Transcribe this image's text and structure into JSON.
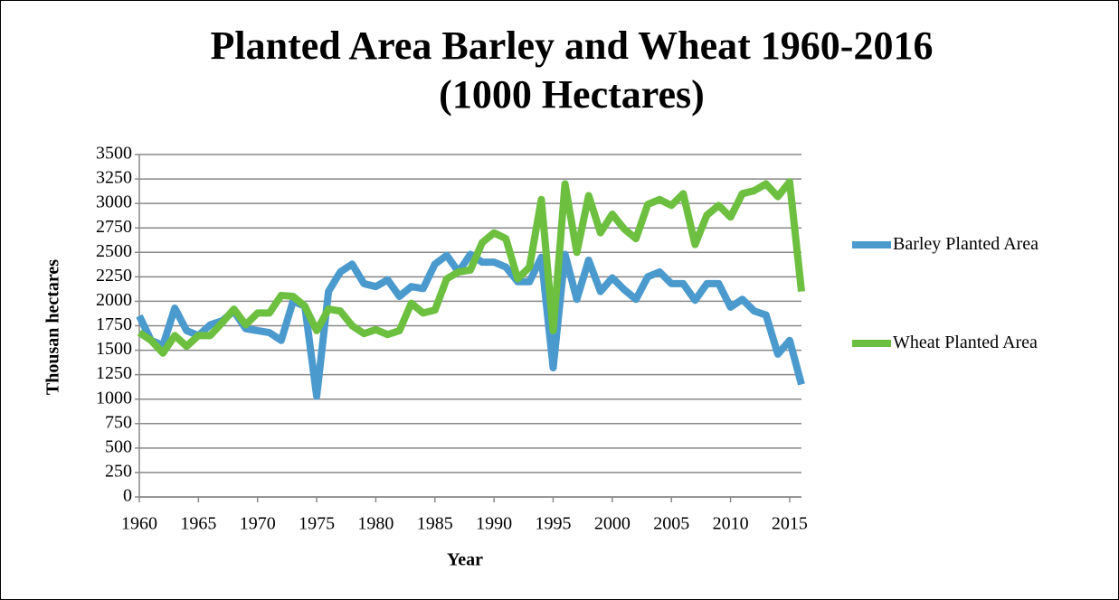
{
  "chart_data": {
    "type": "line",
    "title": [
      "Planted Area Barley and Wheat  1960-2016",
      "(1000 Hectares)"
    ],
    "xlabel": "Year",
    "ylabel": "Thousan hectares",
    "x": [
      1960,
      1961,
      1962,
      1963,
      1964,
      1965,
      1966,
      1967,
      1968,
      1969,
      1970,
      1971,
      1972,
      1973,
      1974,
      1975,
      1976,
      1977,
      1978,
      1979,
      1980,
      1981,
      1982,
      1983,
      1984,
      1985,
      1986,
      1987,
      1988,
      1989,
      1990,
      1991,
      1992,
      1993,
      1994,
      1995,
      1996,
      1997,
      1998,
      1999,
      2000,
      2001,
      2002,
      2003,
      2004,
      2005,
      2006,
      2007,
      2008,
      2009,
      2010,
      2011,
      2012,
      2013,
      2014,
      2015,
      2016
    ],
    "series": [
      {
        "name": "Barley Planted Area",
        "color": "#4a9acd",
        "values": [
          1850,
          1600,
          1550,
          1930,
          1700,
          1650,
          1760,
          1800,
          1900,
          1720,
          1700,
          1680,
          1600,
          2000,
          1950,
          1030,
          2100,
          2300,
          2380,
          2180,
          2150,
          2220,
          2050,
          2150,
          2130,
          2380,
          2470,
          2300,
          2480,
          2400,
          2400,
          2350,
          2200,
          2200,
          2450,
          1320,
          2480,
          2020,
          2420,
          2100,
          2240,
          2120,
          2020,
          2250,
          2300,
          2180,
          2180,
          2010,
          2180,
          2180,
          1940,
          2020,
          1900,
          1860,
          1460,
          1600,
          1150
        ]
      },
      {
        "name": "Wheat Planted Area",
        "color": "#6cbf3f",
        "values": [
          1680,
          1600,
          1470,
          1650,
          1540,
          1650,
          1650,
          1780,
          1920,
          1760,
          1880,
          1880,
          2060,
          2050,
          1950,
          1700,
          1920,
          1900,
          1750,
          1670,
          1710,
          1660,
          1700,
          1980,
          1880,
          1910,
          2230,
          2300,
          2320,
          2600,
          2700,
          2640,
          2230,
          2350,
          3040,
          1700,
          3200,
          2500,
          3080,
          2700,
          2890,
          2740,
          2640,
          2990,
          3040,
          2980,
          3100,
          2580,
          2880,
          2980,
          2860,
          3100,
          3130,
          3200,
          3070,
          3220,
          2100
        ]
      }
    ],
    "xlim": [
      1960,
      2016
    ],
    "xticks": [
      1960,
      1965,
      1970,
      1975,
      1980,
      1985,
      1990,
      1995,
      2000,
      2005,
      2010,
      2015
    ],
    "ylim": [
      0,
      3500
    ],
    "yticks": [
      0,
      250,
      500,
      750,
      1000,
      1250,
      1500,
      1750,
      2000,
      2250,
      2500,
      2750,
      3000,
      3250,
      3500
    ],
    "grid": true,
    "legend": "right"
  }
}
